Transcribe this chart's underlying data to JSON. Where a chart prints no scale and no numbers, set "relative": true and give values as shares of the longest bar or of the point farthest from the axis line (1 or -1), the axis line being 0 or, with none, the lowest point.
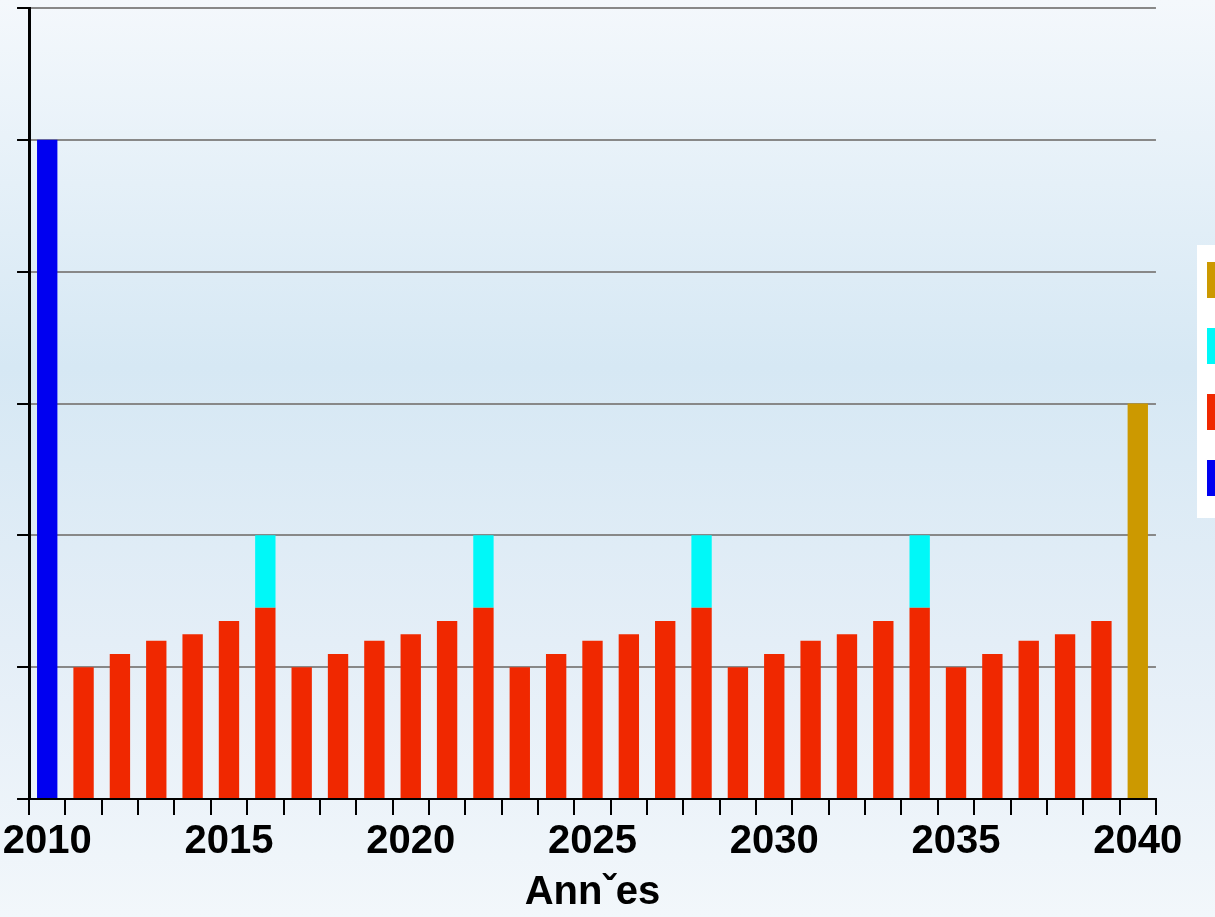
{
  "chart_data": {
    "type": "bar",
    "xlabel": "Annˇes",
    "relative": true,
    "stacked": true,
    "grid": "y",
    "categories": [
      "2010",
      null,
      null,
      null,
      null,
      "2015",
      null,
      null,
      null,
      null,
      "2020",
      null,
      null,
      null,
      null,
      "2025",
      null,
      null,
      null,
      null,
      "2030",
      null,
      null,
      null,
      null,
      "2035",
      null,
      null,
      null,
      null,
      "2040"
    ],
    "series": [
      {
        "color": "#0000f0",
        "values": [
          1,
          null,
          null,
          null,
          null,
          null,
          null,
          null,
          null,
          null,
          null,
          null,
          null,
          null,
          null,
          null,
          null,
          null,
          null,
          null,
          null,
          null,
          null,
          null,
          null,
          null,
          null,
          null,
          null,
          null,
          null
        ]
      },
      {
        "color": "#f02800",
        "values": [
          null,
          0.2,
          0.22,
          0.24,
          0.25,
          0.27,
          0.29,
          0.2,
          0.22,
          0.24,
          0.25,
          0.27,
          0.29,
          0.2,
          0.22,
          0.24,
          0.25,
          0.27,
          0.29,
          0.2,
          0.22,
          0.24,
          0.25,
          0.27,
          0.29,
          0.2,
          0.22,
          0.24,
          0.25,
          0.27,
          null
        ]
      },
      {
        "color": "#00f8f8",
        "values": [
          null,
          null,
          null,
          null,
          null,
          null,
          0.11,
          null,
          null,
          null,
          null,
          null,
          0.11,
          null,
          null,
          null,
          null,
          null,
          0.11,
          null,
          null,
          null,
          null,
          null,
          0.11,
          null,
          null,
          null,
          null,
          null,
          null
        ]
      },
      {
        "color": "#cc9900",
        "values": [
          null,
          null,
          null,
          null,
          null,
          null,
          null,
          null,
          null,
          null,
          null,
          null,
          null,
          null,
          null,
          null,
          null,
          null,
          null,
          null,
          null,
          null,
          null,
          null,
          null,
          null,
          null,
          null,
          null,
          null,
          0.6
        ]
      }
    ]
  }
}
